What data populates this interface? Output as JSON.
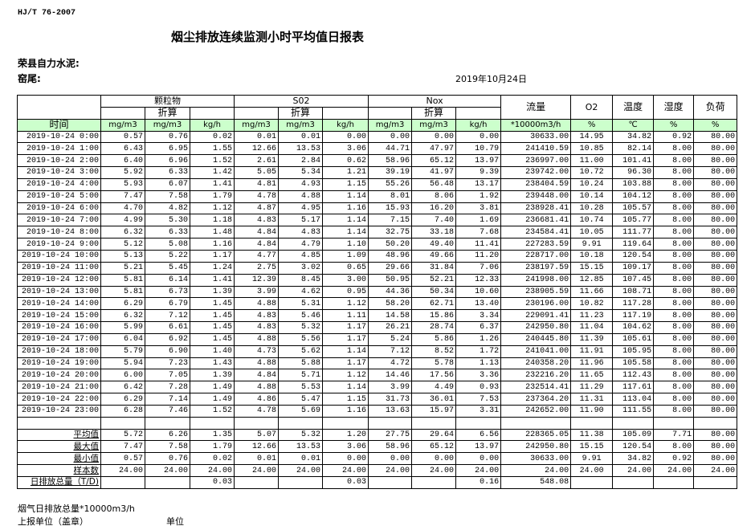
{
  "header": {
    "standard": "HJ/T  76-2007",
    "title": "烟尘排放连续监测小时平均值日报表",
    "company": "荣县自力水泥:",
    "kiln": "窑尾:",
    "date": "2019年10月24日"
  },
  "table": {
    "groups": {
      "particulate": "颗粒物",
      "so2": "S02",
      "nox": "Nox",
      "converted": "折算",
      "flow": "流量",
      "o2": "O2",
      "temp": "温度",
      "humidity": "湿度",
      "load": "负荷"
    },
    "units": [
      "时间",
      "mg/m3",
      "mg/m3",
      "kg/h",
      "mg/m3",
      "mg/m3",
      "kg/h",
      "mg/m3",
      "mg/m3",
      "kg/h",
      "*10000m3/h",
      "%",
      "℃",
      "%",
      "%"
    ],
    "header_bg": "#ccffcc",
    "rows": [
      [
        "2019-10-24 0:00",
        "0.57",
        "0.76",
        "0.02",
        "0.01",
        "0.01",
        "0.00",
        "0.00",
        "0.00",
        "0.00",
        "30633.00",
        "14.95",
        "34.82",
        "0.92",
        "80.00"
      ],
      [
        "2019-10-24 1:00",
        "6.43",
        "6.95",
        "1.55",
        "12.66",
        "13.53",
        "3.06",
        "44.71",
        "47.97",
        "10.79",
        "241410.59",
        "10.85",
        "82.14",
        "8.00",
        "80.00"
      ],
      [
        "2019-10-24 2:00",
        "6.40",
        "6.96",
        "1.52",
        "2.61",
        "2.84",
        "0.62",
        "58.96",
        "65.12",
        "13.97",
        "236997.00",
        "11.00",
        "101.41",
        "8.00",
        "80.00"
      ],
      [
        "2019-10-24 3:00",
        "5.92",
        "6.33",
        "1.42",
        "5.05",
        "5.34",
        "1.21",
        "39.19",
        "41.97",
        "9.39",
        "239742.00",
        "10.72",
        "96.30",
        "8.00",
        "80.00"
      ],
      [
        "2019-10-24 4:00",
        "5.93",
        "6.07",
        "1.41",
        "4.81",
        "4.93",
        "1.15",
        "55.26",
        "56.48",
        "13.17",
        "238404.59",
        "10.24",
        "103.88",
        "8.00",
        "80.00"
      ],
      [
        "2019-10-24 5:00",
        "7.47",
        "7.58",
        "1.79",
        "4.78",
        "4.88",
        "1.14",
        "8.01",
        "8.06",
        "1.92",
        "239448.00",
        "10.14",
        "104.12",
        "8.00",
        "80.00"
      ],
      [
        "2019-10-24 6:00",
        "4.70",
        "4.82",
        "1.12",
        "4.87",
        "4.95",
        "1.16",
        "15.93",
        "16.20",
        "3.81",
        "238928.41",
        "10.28",
        "105.57",
        "8.00",
        "80.00"
      ],
      [
        "2019-10-24 7:00",
        "4.99",
        "5.30",
        "1.18",
        "4.83",
        "5.17",
        "1.14",
        "7.15",
        "7.40",
        "1.69",
        "236681.41",
        "10.74",
        "105.77",
        "8.00",
        "80.00"
      ],
      [
        "2019-10-24 8:00",
        "6.32",
        "6.33",
        "1.48",
        "4.84",
        "4.83",
        "1.14",
        "32.75",
        "33.18",
        "7.68",
        "234584.41",
        "10.05",
        "111.77",
        "8.00",
        "80.00"
      ],
      [
        "2019-10-24 9:00",
        "5.12",
        "5.08",
        "1.16",
        "4.84",
        "4.79",
        "1.10",
        "50.20",
        "49.40",
        "11.41",
        "227283.59",
        "9.91",
        "119.64",
        "8.00",
        "80.00"
      ],
      [
        "2019-10-24 10:00",
        "5.13",
        "5.22",
        "1.17",
        "4.77",
        "4.85",
        "1.09",
        "48.96",
        "49.66",
        "11.20",
        "228717.00",
        "10.18",
        "120.54",
        "8.00",
        "80.00"
      ],
      [
        "2019-10-24 11:00",
        "5.21",
        "5.45",
        "1.24",
        "2.75",
        "3.02",
        "0.65",
        "29.66",
        "31.84",
        "7.06",
        "238197.59",
        "15.15",
        "109.17",
        "8.00",
        "80.00"
      ],
      [
        "2019-10-24 12:00",
        "5.81",
        "6.14",
        "1.41",
        "12.39",
        "8.45",
        "3.00",
        "50.95",
        "52.21",
        "12.33",
        "241998.00",
        "12.85",
        "107.45",
        "8.00",
        "80.00"
      ],
      [
        "2019-10-24 13:00",
        "5.81",
        "6.73",
        "1.39",
        "3.99",
        "4.62",
        "0.95",
        "44.36",
        "50.34",
        "10.60",
        "238905.59",
        "11.66",
        "108.71",
        "8.00",
        "80.00"
      ],
      [
        "2019-10-24 14:00",
        "6.29",
        "6.79",
        "1.45",
        "4.88",
        "5.31",
        "1.12",
        "58.20",
        "62.71",
        "13.40",
        "230196.00",
        "10.82",
        "117.28",
        "8.00",
        "80.00"
      ],
      [
        "2019-10-24 15:00",
        "6.32",
        "7.12",
        "1.45",
        "4.83",
        "5.46",
        "1.11",
        "14.58",
        "15.86",
        "3.34",
        "229091.41",
        "11.23",
        "117.19",
        "8.00",
        "80.00"
      ],
      [
        "2019-10-24 16:00",
        "5.99",
        "6.61",
        "1.45",
        "4.83",
        "5.32",
        "1.17",
        "26.21",
        "28.74",
        "6.37",
        "242950.80",
        "11.04",
        "104.62",
        "8.00",
        "80.00"
      ],
      [
        "2019-10-24 17:00",
        "6.04",
        "6.92",
        "1.45",
        "4.88",
        "5.56",
        "1.17",
        "5.24",
        "5.86",
        "1.26",
        "240445.80",
        "11.39",
        "105.61",
        "8.00",
        "80.00"
      ],
      [
        "2019-10-24 18:00",
        "5.79",
        "6.90",
        "1.40",
        "4.73",
        "5.62",
        "1.14",
        "7.12",
        "8.52",
        "1.72",
        "241041.00",
        "11.91",
        "105.95",
        "8.00",
        "80.00"
      ],
      [
        "2019-10-24 19:00",
        "5.94",
        "7.23",
        "1.43",
        "4.88",
        "5.88",
        "1.17",
        "4.72",
        "5.78",
        "1.13",
        "240358.20",
        "11.96",
        "105.58",
        "8.00",
        "80.00"
      ],
      [
        "2019-10-24 20:00",
        "6.00",
        "7.05",
        "1.39",
        "4.84",
        "5.71",
        "1.12",
        "14.46",
        "17.56",
        "3.36",
        "232216.20",
        "11.65",
        "112.43",
        "8.00",
        "80.00"
      ],
      [
        "2019-10-24 21:00",
        "6.42",
        "7.28",
        "1.49",
        "4.88",
        "5.53",
        "1.14",
        "3.99",
        "4.49",
        "0.93",
        "232514.41",
        "11.29",
        "117.61",
        "8.00",
        "80.00"
      ],
      [
        "2019-10-24 22:00",
        "6.29",
        "7.14",
        "1.49",
        "4.86",
        "5.47",
        "1.15",
        "31.73",
        "36.01",
        "7.53",
        "237364.20",
        "11.31",
        "113.04",
        "8.00",
        "80.00"
      ],
      [
        "2019-10-24 23:00",
        "6.28",
        "7.46",
        "1.52",
        "4.78",
        "5.69",
        "1.16",
        "13.63",
        "15.97",
        "3.31",
        "242652.00",
        "11.90",
        "111.55",
        "8.00",
        "80.00"
      ]
    ],
    "summary": [
      [
        "平均值",
        "5.72",
        "6.26",
        "1.35",
        "5.07",
        "5.32",
        "1.20",
        "27.75",
        "29.64",
        "6.56",
        "228365.05",
        "11.38",
        "105.09",
        "7.71",
        "80.00"
      ],
      [
        "最大值",
        "7.47",
        "7.58",
        "1.79",
        "12.66",
        "13.53",
        "3.06",
        "58.96",
        "65.12",
        "13.97",
        "242950.80",
        "15.15",
        "120.54",
        "8.00",
        "80.00"
      ],
      [
        "最小值",
        "0.57",
        "0.76",
        "0.02",
        "0.01",
        "0.01",
        "0.00",
        "0.00",
        "0.00",
        "0.00",
        "30633.00",
        "9.91",
        "34.82",
        "0.92",
        "80.00"
      ],
      [
        "样本数",
        "24.00",
        "24.00",
        "24.00",
        "24.00",
        "24.00",
        "24.00",
        "24.00",
        "24.00",
        "24.00",
        "24.00",
        "24.00",
        "24.00",
        "24.00",
        "24.00"
      ],
      [
        "日排放总量（T/D)",
        "",
        "",
        "0.03",
        "",
        "",
        "0.03",
        "",
        "",
        "0.16",
        "548.08",
        "",
        "",
        "",
        ""
      ]
    ]
  },
  "footer": {
    "flue_total": "烟气日排放总量*10000m3/h",
    "reporter": "上报单位（盖章）",
    "unit": "单位"
  }
}
